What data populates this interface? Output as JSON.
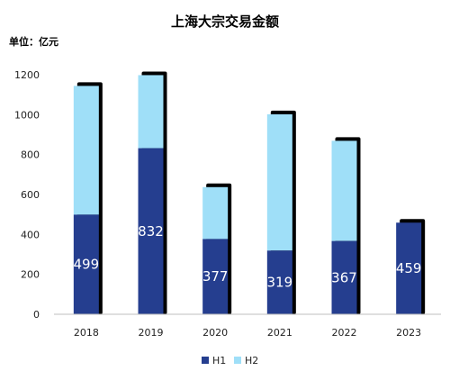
{
  "title": "上海大宗交易金额",
  "unit_label": "单位：亿元",
  "colors": {
    "h1": "#253E8F",
    "h2": "#9FDFF8",
    "shadow": "#000000",
    "axis": "#BFBFBF"
  },
  "chart_data": {
    "type": "bar",
    "stacked": true,
    "title": "上海大宗交易金额",
    "ylabel": "单位：亿元",
    "categories": [
      "2018",
      "2019",
      "2020",
      "2021",
      "2022",
      "2023"
    ],
    "series": [
      {
        "name": "H1",
        "values": [
          499,
          832,
          377,
          319,
          367,
          459
        ],
        "data_labels": [
          "499",
          "832",
          "377",
          "319",
          "367",
          "459"
        ]
      },
      {
        "name": "H2",
        "values": [
          645,
          366,
          260,
          683,
          502,
          null
        ]
      }
    ],
    "ylim": [
      0,
      1200
    ],
    "yticks": [
      "0",
      "200",
      "400",
      "600",
      "800",
      "1000",
      "1200"
    ],
    "grid": false,
    "legend": "bottom-center"
  }
}
